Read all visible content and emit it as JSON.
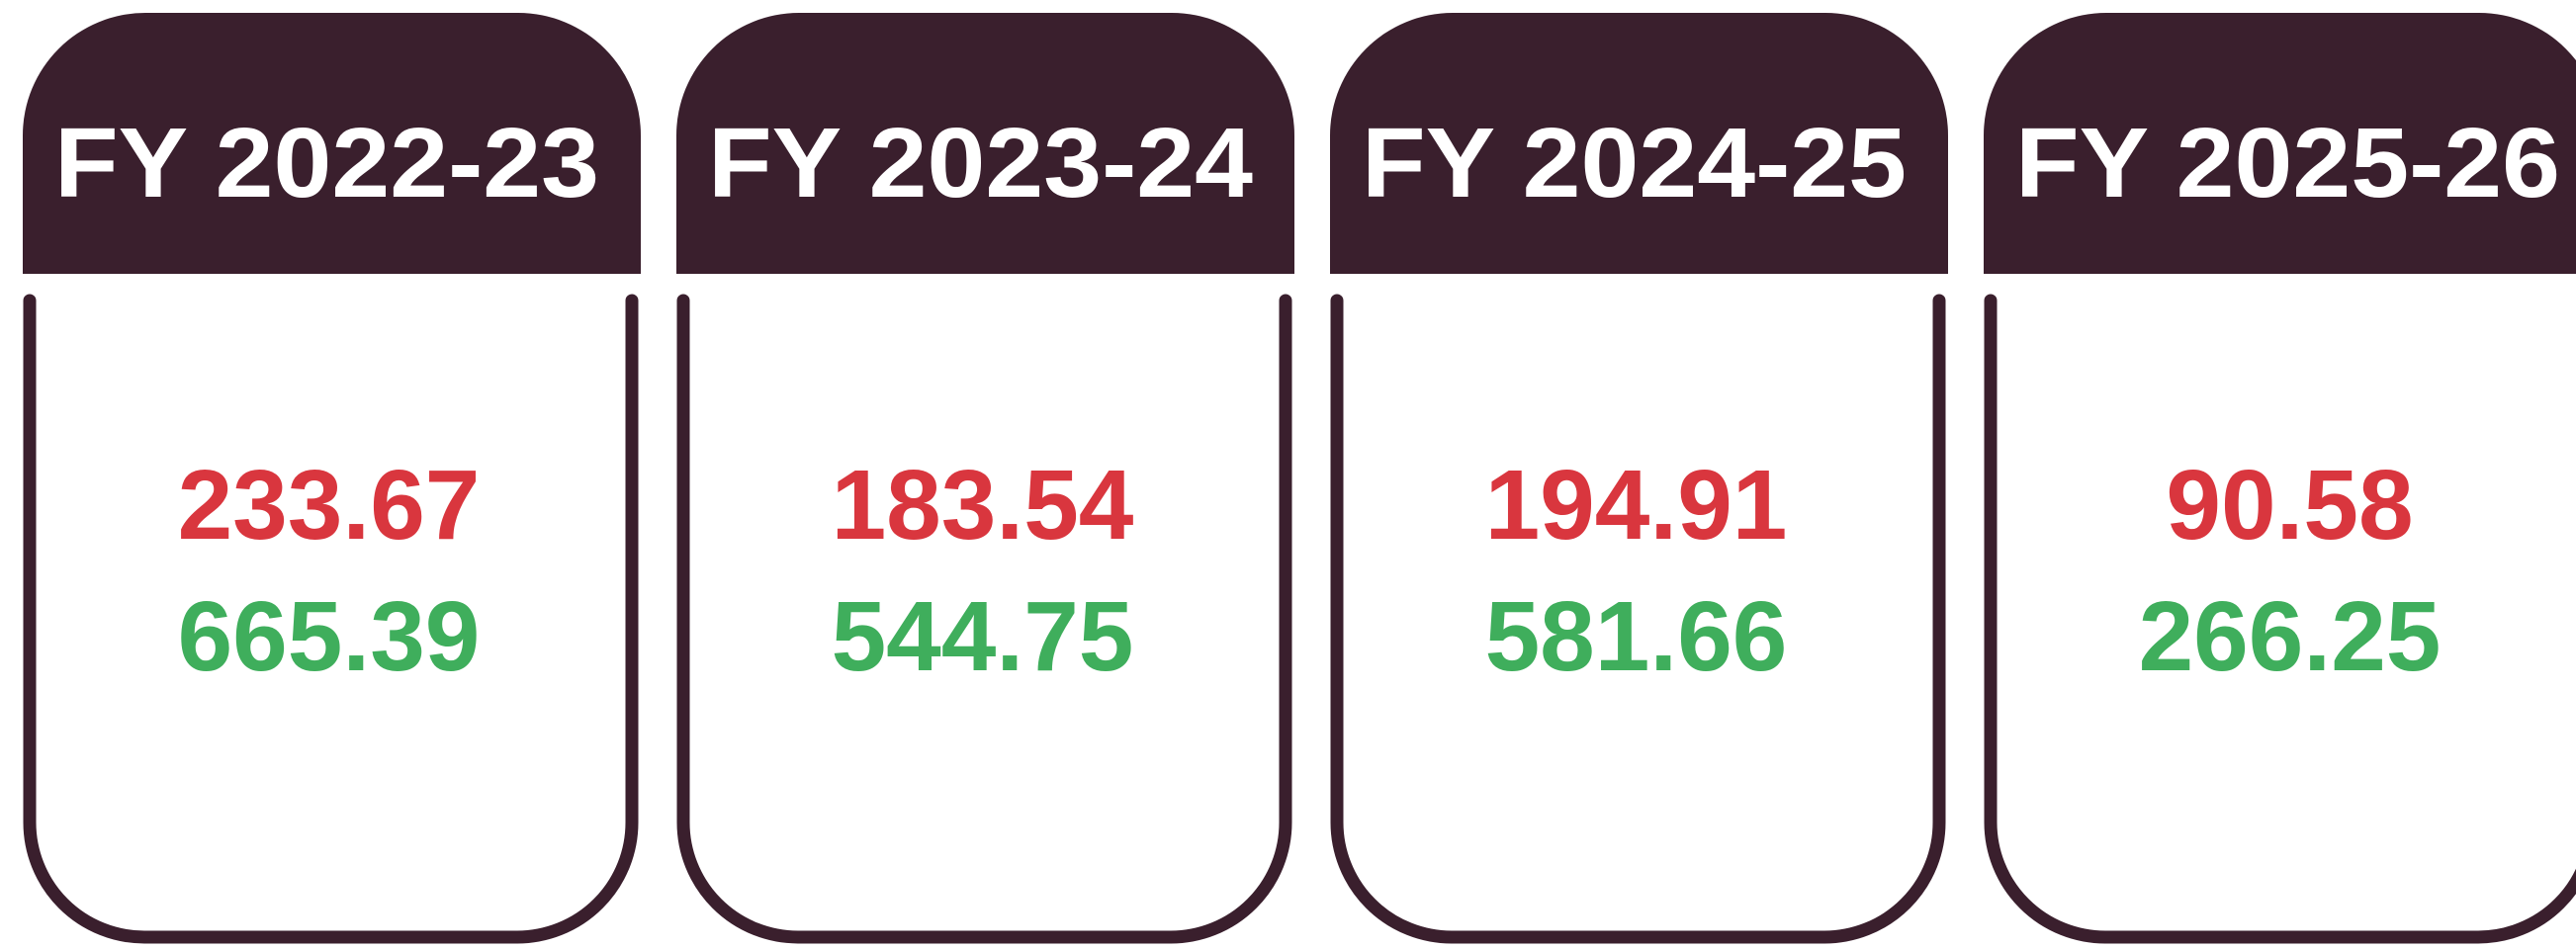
{
  "cards": [
    {
      "title": "FY 2022-23",
      "values": [
        233.67,
        665.39
      ]
    },
    {
      "title": "FY 2023-24",
      "values": [
        183.54,
        544.75
      ]
    },
    {
      "title": "FY 2024-25",
      "values": [
        194.91,
        581.66
      ]
    },
    {
      "title": "FY 2025-26",
      "values": [
        90.58,
        266.25
      ]
    }
  ]
}
